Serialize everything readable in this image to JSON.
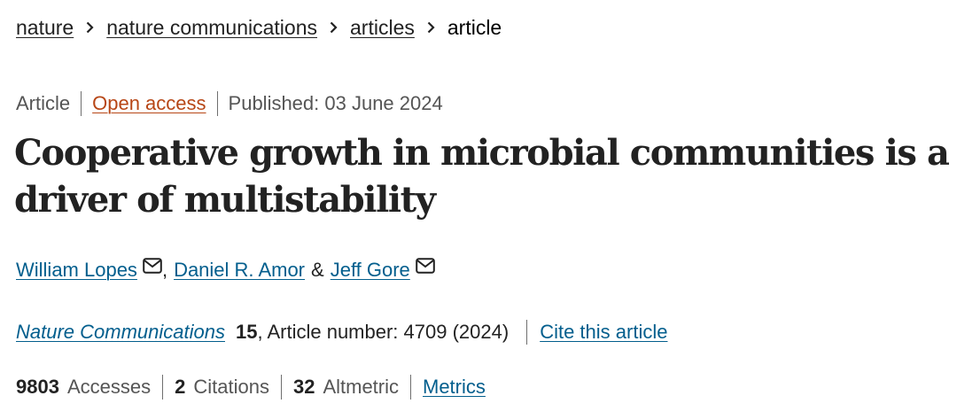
{
  "breadcrumb": {
    "items": [
      {
        "label": "nature"
      },
      {
        "label": "nature communications"
      },
      {
        "label": "articles"
      }
    ],
    "current": "article"
  },
  "meta": {
    "type": "Article",
    "access": "Open access",
    "published": "Published: 03 June 2024"
  },
  "article": {
    "title": "Cooperative growth in microbial communities is a driver of multistability"
  },
  "authors": {
    "list": [
      {
        "name": "William Lopes",
        "contact_icon": "mail-icon"
      },
      {
        "name": "Daniel R. Amor"
      },
      {
        "name": "Jeff Gore",
        "contact_icon": "mail-icon"
      }
    ],
    "comma": ",",
    "ampersand": "&"
  },
  "citation": {
    "journal": "Nature Communications",
    "volume": "15",
    "details": ", Article number: 4709 (2024)",
    "cite_link": "Cite this article"
  },
  "metrics": {
    "accesses_count": "9803",
    "accesses_label": "Accesses",
    "citations_count": "2",
    "citations_label": "Citations",
    "altmetric_count": "32",
    "altmetric_label": "Altmetric",
    "metrics_link": "Metrics"
  },
  "colors": {
    "link": "#025e8d",
    "open_access": "#b74616",
    "text": "#222222",
    "muted": "#555555"
  }
}
